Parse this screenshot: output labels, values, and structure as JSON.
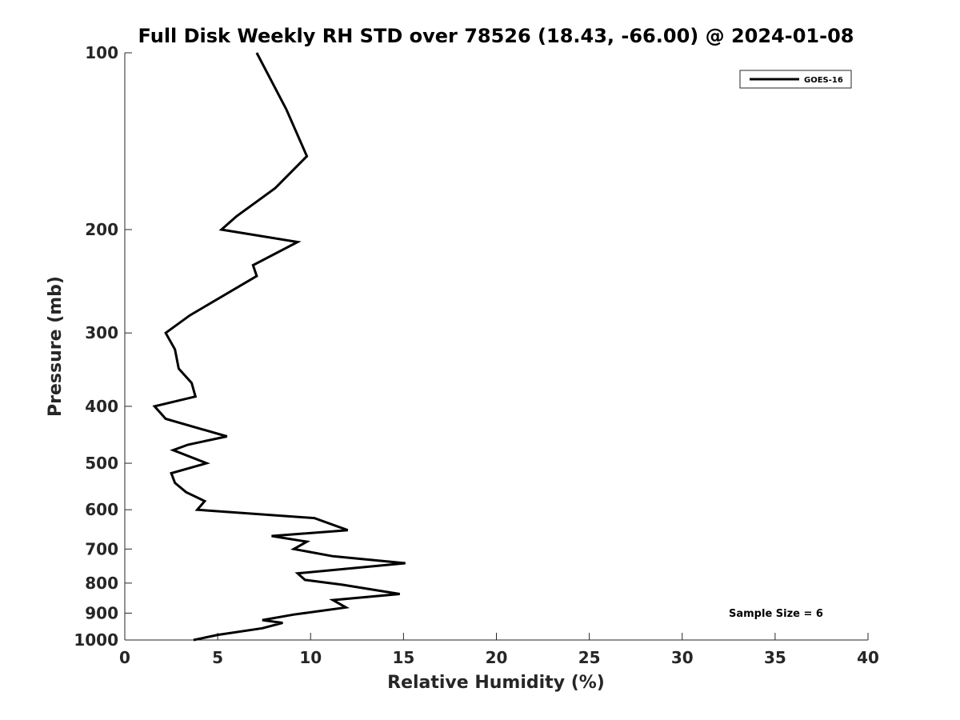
{
  "chart_data": {
    "type": "line",
    "title": "Full Disk Weekly RH STD over 78526 (18.43, -66.00) @ 2024-01-08",
    "xlabel": "Relative Humidity (%)",
    "ylabel": "Pressure (mb)",
    "xlim": [
      0,
      40
    ],
    "ylim": [
      100,
      1000
    ],
    "y_scale": "log",
    "y_reversed": true,
    "x_ticks": [
      "0",
      "5",
      "10",
      "15",
      "20",
      "25",
      "30",
      "35",
      "40"
    ],
    "y_ticks": [
      "100",
      "200",
      "300",
      "400",
      "500",
      "600",
      "700",
      "800",
      "900",
      "1000"
    ],
    "grid": false,
    "legend": {
      "position": "top-right",
      "entries": [
        "GOES-16"
      ]
    },
    "annotation": "Sample Size = 6",
    "series": [
      {
        "name": "GOES-16",
        "color": "#000000",
        "points": [
          [
            7.1,
            100
          ],
          [
            8.7,
            125
          ],
          [
            9.8,
            150
          ],
          [
            8.1,
            170
          ],
          [
            6.0,
            190
          ],
          [
            5.2,
            200
          ],
          [
            9.3,
            210
          ],
          [
            6.9,
            230
          ],
          [
            7.1,
            240
          ],
          [
            3.5,
            280
          ],
          [
            2.2,
            300
          ],
          [
            2.7,
            320
          ],
          [
            2.9,
            345
          ],
          [
            3.6,
            365
          ],
          [
            3.8,
            385
          ],
          [
            1.6,
            400
          ],
          [
            2.2,
            420
          ],
          [
            5.5,
            450
          ],
          [
            3.4,
            465
          ],
          [
            2.6,
            475
          ],
          [
            4.4,
            500
          ],
          [
            2.5,
            520
          ],
          [
            2.7,
            540
          ],
          [
            3.3,
            560
          ],
          [
            4.3,
            580
          ],
          [
            3.9,
            600
          ],
          [
            10.2,
            620
          ],
          [
            12.0,
            650
          ],
          [
            7.9,
            665
          ],
          [
            9.8,
            680
          ],
          [
            9.1,
            700
          ],
          [
            11.2,
            720
          ],
          [
            15.1,
            740
          ],
          [
            9.3,
            770
          ],
          [
            9.7,
            790
          ],
          [
            11.7,
            805
          ],
          [
            14.8,
            835
          ],
          [
            11.2,
            855
          ],
          [
            11.9,
            880
          ],
          [
            9.1,
            905
          ],
          [
            7.4,
            925
          ],
          [
            8.5,
            935
          ],
          [
            7.4,
            955
          ],
          [
            5.0,
            980
          ],
          [
            3.7,
            1000
          ]
        ]
      }
    ]
  }
}
